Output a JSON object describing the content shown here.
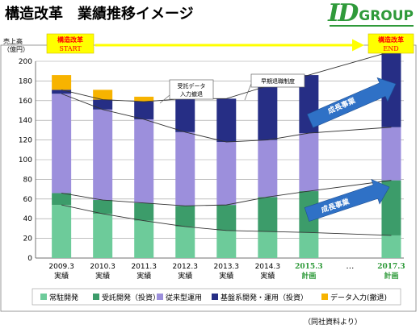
{
  "header": {
    "title": "構造改革　業績推移イメージ",
    "logo_id": "ID",
    "logo_group": "GROUP"
  },
  "footnote": "（同社資料より）",
  "colors": {
    "常駐開発": "#6dcb9a",
    "受託開発（投資）": "#3c9c6a",
    "従来型運用": "#9c8fdc",
    "基盤系開発・運用（投資）": "#262e85",
    "データ入力(撤退)": "#f7b300",
    "banner_red": "#ff0000",
    "banner_yellow": "#ffff00",
    "arrow_blue": "#2f71c6",
    "logo_green": "#2f9a3a"
  },
  "chart_data": {
    "type": "bar",
    "stacked": true,
    "ylabel": "売上高\n（億円）",
    "ylabel_line1": "売上高",
    "ylabel_line2": "（億円）",
    "ylim": [
      0,
      200
    ],
    "yticks": [
      0,
      20,
      40,
      60,
      80,
      100,
      120,
      140,
      160,
      180,
      200
    ],
    "grid": true,
    "legend_position": "bottom",
    "categories": [
      "2009.3\n実績",
      "2010.3\n実績",
      "2011.3\n実績",
      "2012.3\n実績",
      "2013.3\n実績",
      "2014.3\n実績",
      "2015.3\n計画",
      "…",
      "2017.3\n計画"
    ],
    "category_lines": [
      [
        "2009.3",
        "実績"
      ],
      [
        "2010.3",
        "実績"
      ],
      [
        "2011.3",
        "実績"
      ],
      [
        "2012.3",
        "実績"
      ],
      [
        "2013.3",
        "実績"
      ],
      [
        "2014.3",
        "実績"
      ],
      [
        "2015.3",
        "計画"
      ],
      [
        "…",
        ""
      ],
      [
        "2017.3",
        "計画"
      ]
    ],
    "plan_label_color": "#2f9a3a",
    "series": [
      {
        "name": "常駐開発",
        "values": [
          54,
          45,
          38,
          32,
          28,
          27,
          26,
          null,
          23
        ]
      },
      {
        "name": "受託開発（投資）",
        "values": [
          12,
          14,
          18,
          21,
          26,
          35,
          42,
          null,
          56
        ]
      },
      {
        "name": "従来型運用",
        "values": [
          101,
          92,
          85,
          75,
          64,
          58,
          59,
          null,
          54
        ]
      },
      {
        "name": "基盤系開発・運用（投資）",
        "values": [
          4,
          10,
          18,
          34,
          44,
          55,
          59,
          null,
          77
        ]
      },
      {
        "name": "データ入力(撤退)",
        "values": [
          15,
          10,
          5,
          0,
          0,
          0,
          0,
          null,
          0
        ]
      }
    ],
    "annotations": {
      "start_banner": [
        "構造改革",
        "START"
      ],
      "end_banner": [
        "構造改革",
        "END"
      ],
      "data_entry_withdrawal": [
        "受託データ",
        "入力撤退"
      ],
      "early_retirement": "早期退職制度",
      "growth_business_top": "成長事業",
      "growth_business_bottom": "成長事業"
    }
  }
}
